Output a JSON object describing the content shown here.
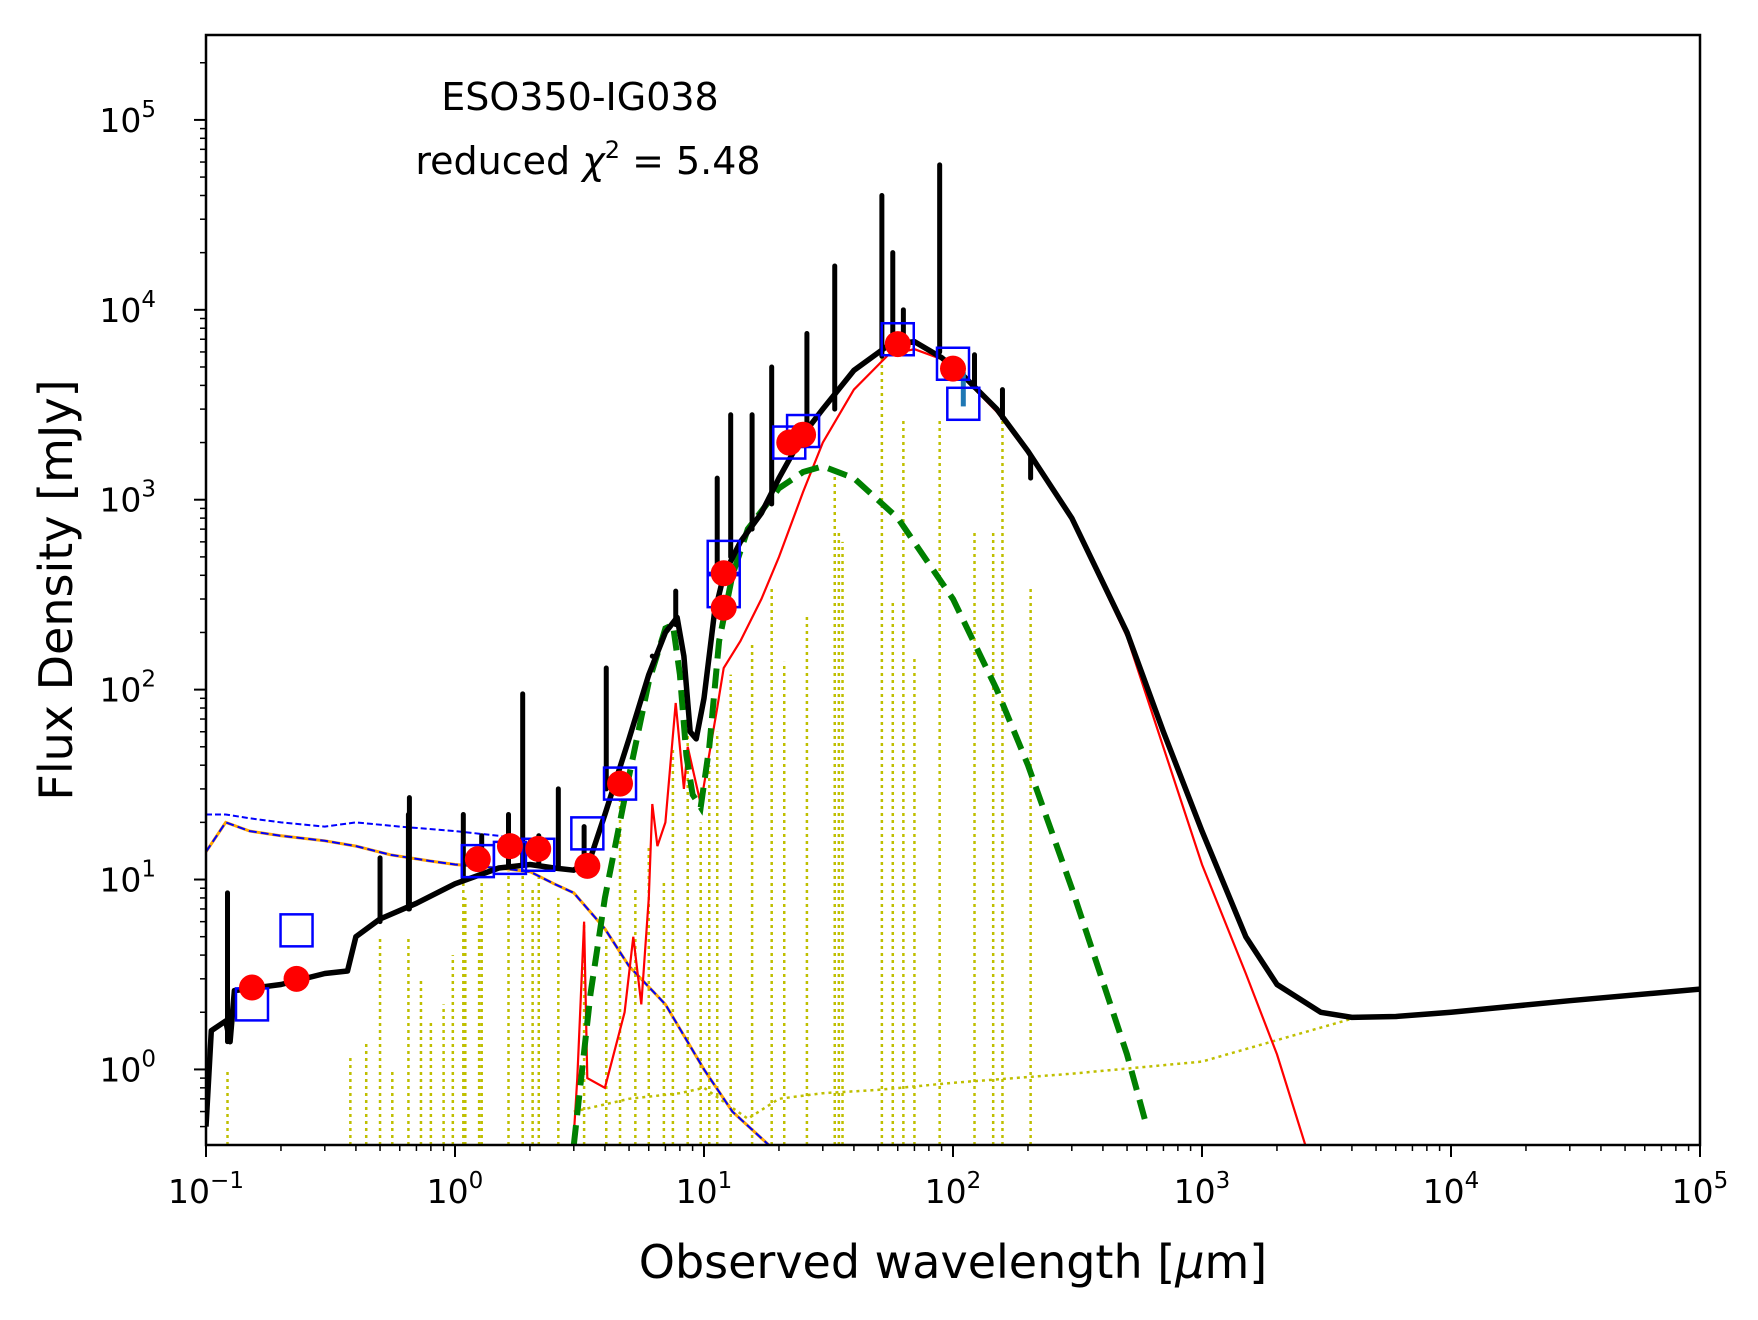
{
  "chart_data": {
    "type": "line",
    "title": "",
    "annotation": {
      "object_name": "ESO350-IG038",
      "chi_prefix": "reduced ",
      "chi_symbol": "χ",
      "chi_power": "2",
      "chi_suffix": " = 5.48"
    },
    "xlabel": {
      "prefix": "Observed wavelength [",
      "mu": "μ",
      "suffix": "m]"
    },
    "ylabel": "Flux Density [mJy]",
    "x_scale": "log",
    "y_scale": "log",
    "xlim": [
      0.1,
      100000
    ],
    "ylim": [
      0.4,
      280000
    ],
    "grid": false,
    "legend": "none",
    "x_ticks": [
      {
        "value": 0.1,
        "base": "10",
        "exp": "−1"
      },
      {
        "value": 1,
        "base": "10",
        "exp": "0"
      },
      {
        "value": 10,
        "base": "10",
        "exp": "1"
      },
      {
        "value": 100,
        "base": "10",
        "exp": "2"
      },
      {
        "value": 1000,
        "base": "10",
        "exp": "3"
      },
      {
        "value": 10000,
        "base": "10",
        "exp": "4"
      },
      {
        "value": 100000,
        "base": "10",
        "exp": "5"
      }
    ],
    "y_ticks": [
      {
        "value": 1,
        "base": "10",
        "exp": "0"
      },
      {
        "value": 10,
        "base": "10",
        "exp": "1"
      },
      {
        "value": 100,
        "base": "10",
        "exp": "2"
      },
      {
        "value": 1000,
        "base": "10",
        "exp": "3"
      },
      {
        "value": 10000,
        "base": "10",
        "exp": "4"
      },
      {
        "value": 100000,
        "base": "10",
        "exp": "5"
      }
    ],
    "colors": {
      "total": "#000000",
      "dust": "#ff0000",
      "agn": "#008000",
      "stellar_attenuated": "#0000ff",
      "stellar_unattenuated": "#ffa500",
      "nebular": "#bfbf00",
      "observed_marker": "#ff0000",
      "model_marker": "#0000ff",
      "error_bar": "#1f77b4"
    },
    "series": [
      {
        "role": "total",
        "style": "solid-thick",
        "points": [
          [
            0.1,
            0.5
          ],
          [
            0.105,
            1.6
          ],
          [
            0.12,
            1.8
          ],
          [
            0.125,
            1.4
          ],
          [
            0.13,
            2.6
          ],
          [
            0.2,
            2.8
          ],
          [
            0.3,
            3.2
          ],
          [
            0.37,
            3.3
          ],
          [
            0.4,
            5.0
          ],
          [
            0.5,
            6.2
          ],
          [
            0.7,
            7.5
          ],
          [
            1.0,
            9.5
          ],
          [
            1.5,
            11.5
          ],
          [
            2.0,
            12.0
          ],
          [
            2.5,
            11.5
          ],
          [
            3.0,
            11.2
          ],
          [
            3.5,
            13.0
          ],
          [
            4.0,
            22
          ],
          [
            5.0,
            55
          ],
          [
            6.0,
            120
          ],
          [
            7.0,
            200
          ],
          [
            7.8,
            240
          ],
          [
            8.3,
            150
          ],
          [
            8.8,
            60
          ],
          [
            9.3,
            55
          ],
          [
            10.0,
            90
          ],
          [
            11,
            250
          ],
          [
            12,
            400
          ],
          [
            14,
            600
          ],
          [
            17,
            850
          ],
          [
            20,
            1300
          ],
          [
            25,
            2200
          ],
          [
            30,
            3000
          ],
          [
            40,
            4800
          ],
          [
            55,
            6500
          ],
          [
            70,
            6800
          ],
          [
            90,
            5600
          ],
          [
            110,
            4500
          ],
          [
            150,
            3000
          ],
          [
            200,
            1800
          ],
          [
            300,
            800
          ],
          [
            500,
            200
          ],
          [
            700,
            60
          ],
          [
            1000,
            18
          ],
          [
            1500,
            5
          ],
          [
            2000,
            2.8
          ],
          [
            3000,
            2.0
          ],
          [
            4000,
            1.88
          ],
          [
            6000,
            1.9
          ],
          [
            10000,
            2.0
          ],
          [
            30000,
            2.3
          ],
          [
            100000,
            2.65
          ]
        ]
      },
      {
        "role": "total-emission-lines",
        "style": "spikes",
        "spikes": [
          [
            0.122,
            1.4,
            8.5
          ],
          [
            0.5,
            6.0,
            13
          ],
          [
            0.656,
            7.0,
            27
          ],
          [
            0.65,
            7.0,
            22
          ],
          [
            1.08,
            10,
            22
          ],
          [
            1.28,
            11.5,
            17
          ],
          [
            1.64,
            12,
            22
          ],
          [
            1.87,
            12,
            95
          ],
          [
            2.17,
            12,
            17
          ],
          [
            2.6,
            11.5,
            30
          ],
          [
            3.3,
            12,
            19
          ],
          [
            4.05,
            30,
            130
          ],
          [
            6.2,
            150,
            150
          ],
          [
            7.7,
            220,
            330
          ],
          [
            11.3,
            400,
            1300
          ],
          [
            12.8,
            500,
            2800
          ],
          [
            15.6,
            700,
            2800
          ],
          [
            18.7,
            950,
            5000
          ],
          [
            25.9,
            2000,
            7500
          ],
          [
            33.5,
            3000,
            17000
          ],
          [
            51.8,
            5700,
            40000
          ],
          [
            57.3,
            6500,
            20000
          ],
          [
            63.2,
            6700,
            10000
          ],
          [
            88.4,
            6000,
            58000
          ],
          [
            122,
            3900,
            5800
          ],
          [
            158,
            2700,
            3800
          ],
          [
            205,
            1700,
            1300
          ]
        ]
      },
      {
        "role": "dust",
        "style": "solid-thin",
        "points": [
          [
            3.0,
            0.45
          ],
          [
            3.1,
            0.9
          ],
          [
            3.3,
            6.0
          ],
          [
            3.4,
            0.9
          ],
          [
            4.0,
            0.8
          ],
          [
            4.8,
            2.0
          ],
          [
            5.2,
            5.0
          ],
          [
            5.6,
            2.2
          ],
          [
            6.0,
            8.0
          ],
          [
            6.2,
            25
          ],
          [
            6.5,
            15
          ],
          [
            7.0,
            20
          ],
          [
            7.7,
            85
          ],
          [
            8.3,
            30
          ],
          [
            8.6,
            50
          ],
          [
            9.7,
            25
          ],
          [
            11.3,
            80
          ],
          [
            12.0,
            130
          ],
          [
            14,
            180
          ],
          [
            17,
            300
          ],
          [
            20,
            500
          ],
          [
            25,
            1100
          ],
          [
            30,
            2000
          ],
          [
            40,
            3800
          ],
          [
            55,
            5800
          ],
          [
            70,
            6200
          ],
          [
            90,
            5500
          ],
          [
            110,
            4400
          ],
          [
            150,
            2900
          ],
          [
            200,
            1750
          ],
          [
            300,
            780
          ],
          [
            500,
            190
          ],
          [
            1000,
            12
          ],
          [
            1500,
            3.2
          ],
          [
            2000,
            1.2
          ],
          [
            2600,
            0.4
          ]
        ]
      },
      {
        "role": "agn",
        "style": "dashed",
        "points": [
          [
            3.0,
            0.4
          ],
          [
            3.5,
            2.5
          ],
          [
            4.0,
            8
          ],
          [
            5.0,
            35
          ],
          [
            6.0,
            110
          ],
          [
            7.0,
            210
          ],
          [
            7.5,
            220
          ],
          [
            8.0,
            120
          ],
          [
            8.5,
            45
          ],
          [
            9.0,
            28
          ],
          [
            9.7,
            24
          ],
          [
            10.5,
            50
          ],
          [
            11.5,
            180
          ],
          [
            13,
            400
          ],
          [
            15,
            700
          ],
          [
            20,
            1150
          ],
          [
            25,
            1400
          ],
          [
            30,
            1500
          ],
          [
            40,
            1300
          ],
          [
            60,
            800
          ],
          [
            100,
            300
          ],
          [
            150,
            100
          ],
          [
            200,
            40
          ],
          [
            300,
            9
          ],
          [
            500,
            1.2
          ],
          [
            600,
            0.5
          ]
        ]
      },
      {
        "role": "stellar_attenuated",
        "style": "dashed-thin",
        "points": [
          [
            0.1,
            14
          ],
          [
            0.12,
            20
          ],
          [
            0.15,
            18
          ],
          [
            0.2,
            17
          ],
          [
            0.3,
            16
          ],
          [
            0.4,
            15
          ],
          [
            0.55,
            13.5
          ],
          [
            0.8,
            12.5
          ],
          [
            1.0,
            12
          ],
          [
            1.5,
            11.5
          ],
          [
            2.0,
            11
          ],
          [
            2.5,
            9.5
          ],
          [
            3.0,
            8.5
          ],
          [
            4.0,
            5.5
          ],
          [
            5.0,
            3.5
          ],
          [
            7.0,
            2.2
          ],
          [
            10,
            1.0
          ],
          [
            13,
            0.6
          ],
          [
            19,
            0.38
          ]
        ]
      },
      {
        "role": "stellar_unattenuated",
        "style": "dashed-thin",
        "points": [
          [
            0.1,
            22
          ],
          [
            0.12,
            22
          ],
          [
            0.15,
            21
          ],
          [
            0.2,
            20
          ],
          [
            0.3,
            19
          ],
          [
            0.4,
            20
          ],
          [
            0.6,
            19
          ],
          [
            1.0,
            18
          ],
          [
            1.5,
            17
          ],
          [
            2.0,
            16
          ]
        ]
      },
      {
        "role": "nebular",
        "style": "dotted",
        "points": [
          [
            3.0,
            0.6
          ],
          [
            5.0,
            0.7
          ],
          [
            8.0,
            0.75
          ],
          [
            10,
            0.8
          ],
          [
            15,
            0.55
          ],
          [
            20,
            0.7
          ],
          [
            30,
            0.75
          ],
          [
            50,
            0.78
          ],
          [
            100,
            0.85
          ],
          [
            300,
            0.95
          ],
          [
            1000,
            1.1
          ],
          [
            4000,
            1.85
          ]
        ]
      },
      {
        "role": "nebular-lines",
        "style": "dotted-spikes",
        "spikes": [
          [
            0.122,
            0.4,
            1.0
          ],
          [
            0.38,
            0.4,
            1.15
          ],
          [
            0.44,
            0.4,
            1.4
          ],
          [
            0.5,
            0.4,
            5.0
          ],
          [
            0.56,
            0.4,
            1.0
          ],
          [
            0.65,
            0.4,
            5.0
          ],
          [
            0.73,
            0.4,
            3.0
          ],
          [
            0.8,
            0.4,
            1.8
          ],
          [
            0.9,
            0.4,
            2.2
          ],
          [
            0.98,
            0.4,
            4.0
          ],
          [
            1.08,
            0.4,
            10
          ],
          [
            1.1,
            0.4,
            8
          ],
          [
            1.25,
            0.4,
            6
          ],
          [
            1.28,
            0.4,
            10
          ],
          [
            1.64,
            0.4,
            11
          ],
          [
            1.87,
            0.4,
            17
          ],
          [
            2.05,
            0.4,
            9
          ],
          [
            2.17,
            0.4,
            11
          ],
          [
            2.6,
            0.4,
            8
          ],
          [
            3.3,
            0.4,
            6
          ],
          [
            4.05,
            0.4,
            5
          ],
          [
            4.6,
            0.4,
            30
          ],
          [
            5.3,
            0.4,
            9
          ],
          [
            6.0,
            0.4,
            15
          ],
          [
            6.9,
            0.4,
            10
          ],
          [
            7.5,
            0.4,
            50
          ],
          [
            8.6,
            0.4,
            80
          ],
          [
            9.7,
            0.4,
            20
          ],
          [
            10.5,
            0.4,
            40
          ],
          [
            11.3,
            0.4,
            60
          ],
          [
            12.8,
            0.4,
            120
          ],
          [
            15.6,
            0.4,
            180
          ],
          [
            18.7,
            0.4,
            350
          ],
          [
            21,
            0.4,
            140
          ],
          [
            25.9,
            0.4,
            250
          ],
          [
            33.5,
            0.4,
            1400
          ],
          [
            34.8,
            0.4,
            700
          ],
          [
            36,
            0.4,
            600
          ],
          [
            51.8,
            0.4,
            6000
          ],
          [
            57.3,
            0.4,
            300
          ],
          [
            63.2,
            0.4,
            2600
          ],
          [
            70,
            0.4,
            150
          ],
          [
            88.4,
            0.4,
            2600
          ],
          [
            122,
            0.4,
            700
          ],
          [
            145,
            0.4,
            700
          ],
          [
            158,
            0.4,
            3000
          ],
          [
            205,
            0.4,
            350
          ]
        ]
      }
    ],
    "observed_fluxes": {
      "x": [
        0.153,
        0.231,
        1.235,
        1.662,
        2.159,
        3.4,
        4.6,
        12,
        12,
        22,
        25,
        60,
        100
      ],
      "y": [
        2.7,
        3.0,
        12.8,
        15.0,
        14.5,
        11.8,
        32,
        270,
        410,
        2000,
        2200,
        6600,
        4900
      ]
    },
    "model_fluxes": {
      "x": [
        0.153,
        0.231,
        1.235,
        1.662,
        2.159,
        3.4,
        4.6,
        12,
        12,
        22,
        25,
        60,
        100,
        110
      ],
      "y": [
        2.2,
        5.4,
        12.5,
        13.0,
        13.5,
        17.5,
        32,
        330,
        500,
        2000,
        2300,
        7000,
        5200,
        3200
      ]
    },
    "error_bars": [
      {
        "x": 110,
        "ylow": 3100,
        "yhigh": 4700
      }
    ]
  }
}
